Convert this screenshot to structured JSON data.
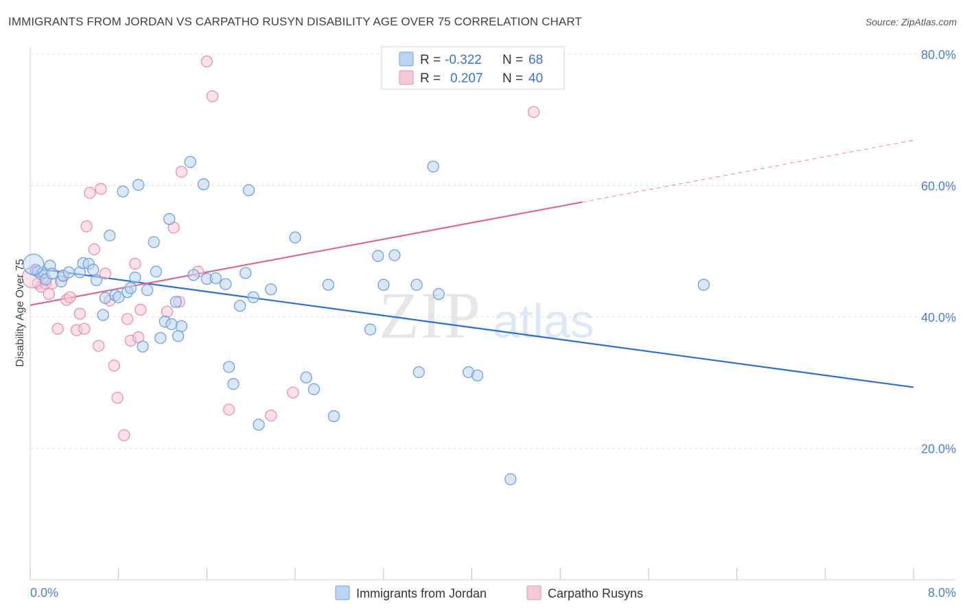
{
  "title": "IMMIGRANTS FROM JORDAN VS CARPATHO RUSYN DISABILITY AGE OVER 75 CORRELATION CHART",
  "source": "Source: ZipAtlas.com",
  "watermark": {
    "zip": "ZIP",
    "atlas": "atlas"
  },
  "colors": {
    "blue": "#6fa0dd",
    "blue_fill": "#bcd3f1",
    "blue_line": "#2a6fd0",
    "pink": "#e68fae",
    "pink_fill": "#f6c9d9",
    "pink_line": "#e0658f",
    "tick_text": "#4a7fcf",
    "grid": "#dddddd"
  },
  "legend_top": {
    "rows": [
      {
        "r_label": "R =",
        "r_value": "-0.322",
        "n_label": "N =",
        "n_value": "68"
      },
      {
        "r_label": "R =",
        "r_value": "0.207",
        "n_label": "N =",
        "n_value": "40"
      }
    ]
  },
  "chart_data": {
    "type": "scatter",
    "title": "IMMIGRANTS FROM JORDAN VS CARPATHO RUSYN DISABILITY AGE OVER 75 CORRELATION CHART",
    "xlabel": "",
    "ylabel": "Disability Age Over 75",
    "xlim": [
      0,
      8
    ],
    "ylim": [
      0,
      83
    ],
    "x_tick_labels": [
      "0.0%",
      "8.0%"
    ],
    "y_ticks": [
      20,
      40,
      60,
      80
    ],
    "y_tick_labels": [
      "20.0%",
      "40.0%",
      "60.0%",
      "80.0%"
    ],
    "grid": true,
    "legend_position": "bottom-center",
    "series": [
      {
        "name": "Immigrants from Jordan",
        "color": "blue",
        "trend": {
          "x": [
            0,
            8
          ],
          "y": [
            47.5,
            29.3
          ],
          "dashed_from": null
        },
        "points": [
          [
            0.05,
            47.2
          ],
          [
            0.07,
            46.9
          ],
          [
            0.1,
            46.5
          ],
          [
            0.12,
            46.8
          ],
          [
            0.14,
            45.7
          ],
          [
            0.18,
            47.8
          ],
          [
            0.2,
            46.6
          ],
          [
            0.28,
            45.4
          ],
          [
            0.3,
            46.3
          ],
          [
            0.35,
            46.8
          ],
          [
            0.45,
            46.8
          ],
          [
            0.48,
            48.2
          ],
          [
            0.53,
            48.1
          ],
          [
            0.57,
            47.2
          ],
          [
            0.6,
            45.6
          ],
          [
            0.68,
            42.9
          ],
          [
            0.66,
            40.3
          ],
          [
            0.72,
            52.4
          ],
          [
            0.77,
            43.3
          ],
          [
            0.8,
            43.0
          ],
          [
            0.84,
            59.1
          ],
          [
            0.88,
            43.8
          ],
          [
            0.91,
            44.4
          ],
          [
            0.95,
            46.0
          ],
          [
            0.98,
            60.1
          ],
          [
            1.02,
            35.5
          ],
          [
            1.06,
            44.1
          ],
          [
            1.12,
            51.4
          ],
          [
            1.14,
            46.9
          ],
          [
            1.18,
            36.8
          ],
          [
            1.22,
            39.3
          ],
          [
            1.26,
            54.9
          ],
          [
            1.28,
            38.9
          ],
          [
            1.32,
            42.3
          ],
          [
            1.34,
            37.1
          ],
          [
            1.37,
            38.6
          ],
          [
            1.45,
            63.6
          ],
          [
            1.48,
            46.4
          ],
          [
            1.57,
            60.2
          ],
          [
            1.6,
            45.8
          ],
          [
            1.68,
            45.9
          ],
          [
            1.77,
            45.0
          ],
          [
            1.8,
            32.4
          ],
          [
            1.84,
            29.8
          ],
          [
            1.9,
            41.7
          ],
          [
            1.95,
            46.7
          ],
          [
            1.98,
            59.3
          ],
          [
            2.02,
            43.0
          ],
          [
            2.07,
            23.6
          ],
          [
            2.18,
            44.2
          ],
          [
            2.4,
            52.1
          ],
          [
            2.5,
            30.8
          ],
          [
            2.57,
            29.0
          ],
          [
            2.7,
            44.9
          ],
          [
            2.75,
            24.9
          ],
          [
            3.08,
            38.1
          ],
          [
            3.15,
            49.3
          ],
          [
            3.2,
            44.9
          ],
          [
            3.3,
            49.4
          ],
          [
            3.5,
            44.9
          ],
          [
            3.52,
            31.6
          ],
          [
            3.65,
            62.9
          ],
          [
            3.7,
            43.5
          ],
          [
            3.97,
            31.6
          ],
          [
            4.05,
            31.1
          ],
          [
            4.35,
            15.3
          ],
          [
            6.1,
            44.9
          ],
          [
            0.03,
            48.0
          ]
        ]
      },
      {
        "name": "Carpatho Rusyns",
        "color": "pink",
        "trend": {
          "x": [
            0,
            8
          ],
          "y": [
            41.8,
            66.9
          ],
          "dashed_from": 5.0
        },
        "points": [
          [
            0.05,
            47.0
          ],
          [
            0.07,
            45.1
          ],
          [
            0.1,
            44.6
          ],
          [
            0.14,
            45.1
          ],
          [
            0.17,
            43.5
          ],
          [
            0.2,
            45.1
          ],
          [
            0.25,
            38.2
          ],
          [
            0.3,
            46.2
          ],
          [
            0.33,
            42.6
          ],
          [
            0.36,
            43.0
          ],
          [
            0.42,
            38.0
          ],
          [
            0.45,
            40.5
          ],
          [
            0.49,
            38.2
          ],
          [
            0.51,
            53.8
          ],
          [
            0.54,
            58.9
          ],
          [
            0.58,
            50.3
          ],
          [
            0.62,
            35.6
          ],
          [
            0.64,
            59.5
          ],
          [
            0.68,
            46.6
          ],
          [
            0.72,
            42.5
          ],
          [
            0.76,
            32.6
          ],
          [
            0.79,
            27.7
          ],
          [
            0.85,
            22.0
          ],
          [
            0.88,
            39.7
          ],
          [
            0.91,
            36.4
          ],
          [
            0.95,
            48.1
          ],
          [
            0.98,
            36.9
          ],
          [
            1.0,
            41.1
          ],
          [
            1.24,
            40.8
          ],
          [
            1.3,
            53.6
          ],
          [
            1.35,
            42.3
          ],
          [
            1.37,
            62.1
          ],
          [
            1.52,
            46.9
          ],
          [
            1.6,
            78.9
          ],
          [
            1.65,
            73.6
          ],
          [
            1.8,
            25.9
          ],
          [
            2.18,
            25.0
          ],
          [
            2.38,
            28.5
          ],
          [
            4.56,
            71.2
          ],
          [
            0.02,
            46.0
          ]
        ]
      }
    ]
  }
}
